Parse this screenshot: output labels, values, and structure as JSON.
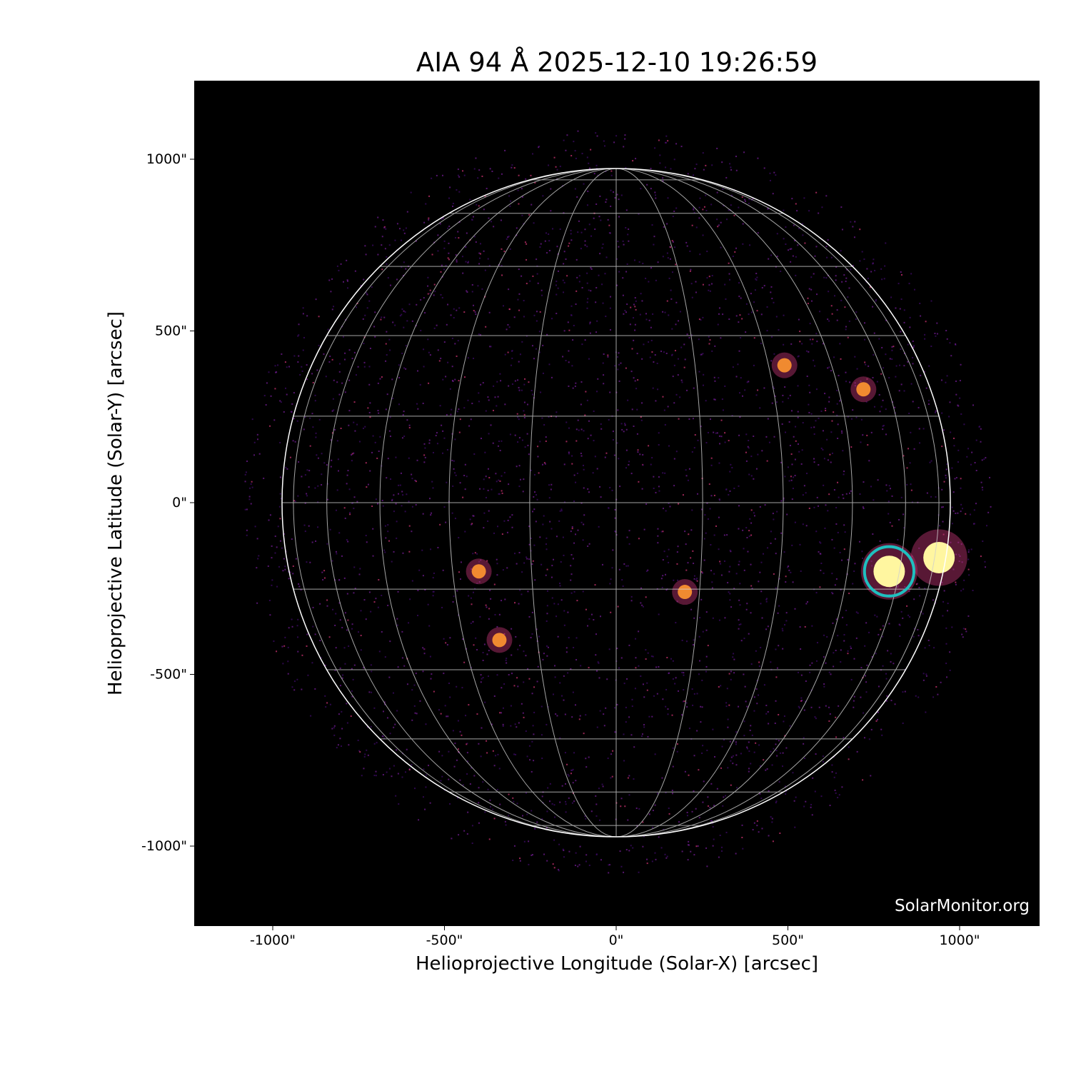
{
  "title": "AIA 94 Å 2025-12-10 19:26:59",
  "xlabel": "Helioprojective Longitude (Solar-X) [arcsec]",
  "ylabel": "Helioprojective Latitude (Solar-Y) [arcsec]",
  "watermark": "SolarMonitor.org",
  "x_ticks": [
    "-1000\"",
    "-500\"",
    "0\"",
    "500\"",
    "1000\""
  ],
  "y_ticks": [
    "1000\"",
    "500\"",
    "0\"",
    "-500\"",
    "-1000\""
  ],
  "x_tick_values": [
    -1000,
    -500,
    0,
    500,
    1000
  ],
  "y_tick_values": [
    1000,
    500,
    0,
    -500,
    -1000
  ],
  "axis_range_arcsec": [
    -1230,
    1230
  ],
  "solar_radius_arcsec": 973,
  "grid_spacing_deg": 15,
  "colormap": "inferno-like (black-purple-orange-yellow)",
  "highlight_circle": {
    "center_arcsec": [
      795,
      -200
    ],
    "radius_arcsec": 72,
    "color": "#1fbfbf"
  },
  "active_regions_arcsec": [
    [
      795,
      -200
    ],
    [
      940,
      -160
    ],
    [
      490,
      400
    ],
    [
      720,
      330
    ],
    [
      -400,
      -200
    ],
    [
      -340,
      -400
    ],
    [
      200,
      -260
    ]
  ]
}
